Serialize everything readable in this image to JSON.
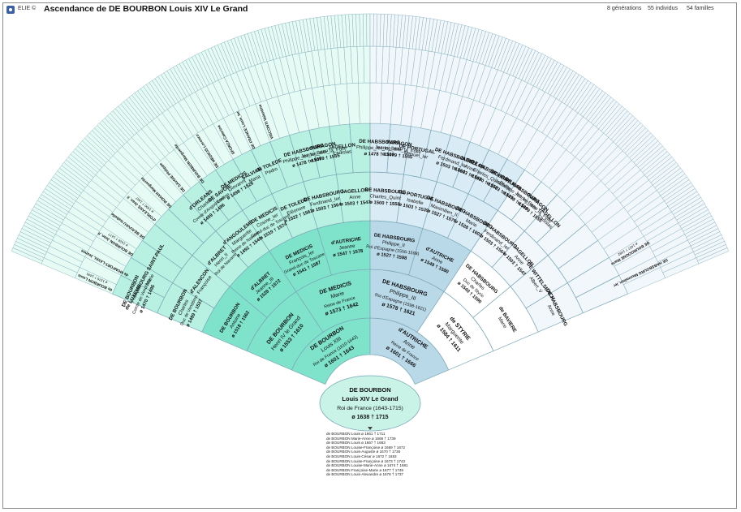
{
  "app": {
    "label": "ELIE ©"
  },
  "title": "Ascendance de DE BOURBON Louis XIV Le Grand",
  "stats": {
    "generations": "8 générations",
    "individuals": "55 individus",
    "families": "54 familles"
  },
  "colors": {
    "paternal_deep": "#7fe3cc",
    "paternal_mid": "#b8f1e2",
    "paternal_light": "#e6fbf4",
    "maternal_deep": "#b9d9e9",
    "maternal_mid": "#d9ebf4",
    "maternal_light": "#f1f7fb",
    "styrie": "#ffffff",
    "root": "#c8f3e6",
    "line": "#7aa7b6"
  },
  "root": {
    "surname": "DE BOURBON",
    "given": "Louis XIV Le Grand",
    "title": "Roi de France (1643-1715)",
    "dates": "ø 1638 † 1715"
  },
  "gen1": [
    {
      "name": "DE BOURBON",
      "given": "Louis XIII",
      "title": "Roi de France (1610-1643)",
      "dates": "ø 1601 † 1643",
      "side": "p"
    },
    {
      "name": "d'AUTRICHE",
      "given": "Anne",
      "title": "Reine de France",
      "dates": "ø 1601 † 1666",
      "side": "m"
    }
  ],
  "gen2": [
    {
      "name": "DE BOURBON",
      "given": "Henri IV le Grand",
      "dates": "ø 1553 † 1610",
      "side": "p"
    },
    {
      "name": "DE MEDICIS",
      "given": "Marie",
      "title": "Reine de France",
      "dates": "ø 1573 † 1642",
      "side": "p"
    },
    {
      "name": "DE HABSBOURG",
      "given": "Philippe_III",
      "title": "Roi d'Espagne (1598-1621)",
      "dates": "ø 1578 † 1621",
      "side": "m"
    },
    {
      "name": "de STYRIE",
      "given": "Marguerite",
      "dates": "ø 1584 † 1611",
      "side": "s"
    }
  ],
  "gen3": [
    {
      "name": "DE BOURBON",
      "given": "Antoine",
      "dates": "ø 1518 † 1562",
      "side": "p"
    },
    {
      "name": "d'ALBRET",
      "given": "Jeanne_III",
      "dates": "ø 1528 † 1572",
      "side": "p"
    },
    {
      "name": "DE MEDICIS",
      "given": "François_Ier",
      "title": "Grand-duc de Toscane",
      "dates": "ø 1541 † 1587",
      "side": "p"
    },
    {
      "name": "d'AUTRICHE",
      "given": "Jeanne",
      "dates": "ø 1547 † 1578",
      "side": "p"
    },
    {
      "name": "DE HABSBOURG",
      "given": "Philippe_II",
      "title": "Roi d'Espagne (1556-1598)",
      "dates": "ø 1527 † 1598",
      "side": "m"
    },
    {
      "name": "d'AUTRICHE",
      "given": "Anne",
      "dates": "ø 1549 † 1580",
      "side": "m"
    },
    {
      "name": "DE HABSBOURG",
      "given": "Charles",
      "title": "Duc de Styrie",
      "dates": "ø 1540 † 1590",
      "side": "s"
    },
    {
      "name": "de BAVIERE",
      "given": "Marie",
      "dates": "",
      "side": "s"
    }
  ],
  "gen4": [
    {
      "name": "DE BOURBON",
      "given": "Charles",
      "title": "Duc de Vendôme",
      "dates": "ø 1489 † 1537",
      "side": "p"
    },
    {
      "name": "d'ALENCON",
      "given": "Françoise",
      "dates": "",
      "side": "p"
    },
    {
      "name": "d'ALBRET",
      "given": "Henri_II",
      "title": "Roi de Navarre",
      "dates": "",
      "side": "p"
    },
    {
      "name": "d'ANGOULEME",
      "given": "Marguerite",
      "title": "Reine de Navarre",
      "dates": "ø 1492 † 1549",
      "side": "p"
    },
    {
      "name": "DE MEDICIS",
      "given": "Cosme_Ier",
      "title": "Grand-duc de Toscane",
      "dates": "ø 1519 † 1574",
      "side": "p"
    },
    {
      "name": "DE TOLEDE",
      "given": "Eléonore",
      "dates": "ø 1522 † 1562",
      "side": "p"
    },
    {
      "name": "DE HABSBOURG",
      "given": "Ferdinand_Ier",
      "dates": "ø 1503 † 1564",
      "side": "p"
    },
    {
      "name": "JAGELLON",
      "given": "Anne",
      "dates": "ø 1503 † 1547",
      "side": "p"
    },
    {
      "name": "DE HABSBOURG",
      "given": "Charles_Quint",
      "dates": "ø 1500 † 1558",
      "side": "m"
    },
    {
      "name": "DE PORTUGAL",
      "given": "Isabelle",
      "dates": "ø 1503 † 1539",
      "side": "m"
    },
    {
      "name": "DE HABSBOURG",
      "given": "Maximilien_II",
      "dates": "ø 1527 † 1576",
      "side": "m"
    },
    {
      "name": "DE HABSBOURG",
      "given": "Marie",
      "dates": "ø 1528 † 1603",
      "side": "m"
    },
    {
      "name": "DE HABSBOURG",
      "given": "Ferdinand_Ier",
      "dates": "ø 1503 † 1564",
      "side": "s"
    },
    {
      "name": "JAGELLON",
      "given": "Anne",
      "dates": "ø 1503 † 1547",
      "side": "s"
    },
    {
      "name": "DE WITTELSBACH",
      "given": "Albert_V",
      "dates": "",
      "side": "s"
    },
    {
      "name": "DE HABSBOURG",
      "given": "Anne",
      "dates": "",
      "side": "s"
    }
  ],
  "gen5": [
    {
      "name": "DE BOURBON",
      "given": "François",
      "title": "Comte de Vendôme",
      "dates": "ø 1470 † 1495",
      "side": "p"
    },
    {
      "name": "de LUXEMBOURG SAINT-PAUL",
      "given": "Marie",
      "dates": "",
      "side": "p"
    },
    {
      "name": "",
      "given": "",
      "dates": "",
      "side": "p"
    },
    {
      "name": "",
      "given": "",
      "dates": "",
      "side": "p"
    },
    {
      "name": "",
      "given": "",
      "dates": "",
      "side": "p"
    },
    {
      "name": "",
      "given": "",
      "dates": "",
      "side": "p"
    },
    {
      "name": "d'ORLEANS",
      "given": "Charles",
      "title": "Comte d'Angoulême",
      "dates": "ø 1459 † 1496",
      "side": "p"
    },
    {
      "name": "DE SAVOIE",
      "given": "Louise",
      "dates": "",
      "side": "p"
    },
    {
      "name": "DE MEDICIS",
      "given": "Giovanni",
      "dates": "ø 1498 † 1526",
      "side": "p"
    },
    {
      "name": "SALVIATI",
      "given": "Maria",
      "dates": "",
      "side": "p"
    },
    {
      "name": "de TOLEDE",
      "given": "Pedro",
      "dates": "",
      "side": "p"
    },
    {
      "name": "",
      "given": "",
      "dates": "",
      "side": "p"
    },
    {
      "name": "DE HABSBOURG",
      "given": "Philippe_Ier_le_Beau",
      "dates": "ø 1478 † 1506",
      "side": "p"
    },
    {
      "name": "d'ARAGON",
      "given": "Jeanne_dite_la_Folle",
      "dates": "ø 1479 † 1555",
      "side": "p"
    },
    {
      "name": "JAGELLON",
      "given": "Ladislas",
      "dates": "",
      "side": "p"
    },
    {
      "name": "",
      "given": "",
      "dates": "",
      "side": "p"
    },
    {
      "name": "DE HABSBOURG",
      "given": "Philippe_Ier_le_Beau",
      "dates": "ø 1478 † 1506",
      "side": "m"
    },
    {
      "name": "d'ARAGON",
      "given": "Jeanne_dite_la_Folle",
      "dates": "ø 1479 † 1555",
      "side": "m"
    },
    {
      "name": "DE PORTUGAL",
      "given": "Manuel_Ier",
      "dates": "",
      "side": "m"
    },
    {
      "name": "",
      "given": "",
      "dates": "",
      "side": "m"
    },
    {
      "name": "DE HABSBOURG",
      "given": "Ferdinand_Ier",
      "dates": "ø 1503 † 1564",
      "side": "m"
    },
    {
      "name": "JAGELLON",
      "given": "Anne",
      "dates": "ø 1503 † 1547",
      "side": "m"
    },
    {
      "name": "DE HABSBOURG",
      "given": "Charles_Quint",
      "dates": "ø 1500 † 1558",
      "side": "m"
    },
    {
      "name": "DE PORTUGAL",
      "given": "Isabelle",
      "dates": "ø 1503 † 1539",
      "side": "m"
    },
    {
      "name": "DE HABSBOURG",
      "given": "Philippe_Ier_le_Beau",
      "dates": "ø 1478 † 1506",
      "side": "s"
    },
    {
      "name": "d'ARAGON",
      "given": "Jeanne_dite_la_Folle",
      "dates": "ø 1479 † 1555",
      "side": "s"
    },
    {
      "name": "JAGELLON",
      "given": "Ladislas",
      "dates": "",
      "side": "s"
    },
    {
      "name": "",
      "given": "",
      "dates": "",
      "side": "s"
    },
    {
      "name": "",
      "given": "",
      "dates": "",
      "side": "s"
    },
    {
      "name": "",
      "given": "",
      "dates": "",
      "side": "s"
    },
    {
      "name": "",
      "given": "",
      "dates": "",
      "side": "s"
    },
    {
      "name": "",
      "given": "",
      "dates": "",
      "side": "s"
    }
  ],
  "outer_left": [
    {
      "name": "de BOURBON Louis",
      "dates": "ø 1376 † 1446"
    },
    {
      "name": "de MONFORT-LAVAL Jeanne",
      "dates": ""
    },
    {
      "name": "DE BOURBON Jean_II",
      "dates": "ø 1428 † 1477"
    },
    {
      "name": "DE BEAUVAU Isabelle",
      "dates": ""
    },
    {
      "name": "d'ORLEANS Jean_II",
      "dates": "ø 1400 † 1467"
    },
    {
      "name": "DE ROHAN Marguerite",
      "dates": ""
    },
    {
      "name": "DE SAVOIE Philippe",
      "dates": ""
    },
    {
      "name": "DE BOURBON Marguerite",
      "dates": ""
    },
    {
      "name": "DE MEDICIS Lorenzo",
      "dates": ""
    },
    {
      "name": "SFORZA Caterina",
      "dates": ""
    },
    {
      "name": "DE FRANCE Louis_Ier",
      "dates": ""
    },
    {
      "name": "VISCONTI Valentine",
      "dates": ""
    },
    {
      "name": "DE BOURGOGNE Marie",
      "dates": "ø 1457 † 1482"
    },
    {
      "name": "DE HABSBOURG Maximilien_Ier",
      "dates": ""
    }
  ],
  "children_list": [
    "de BOURBON Louis ø 1661 † 1711",
    "de BOURBON Marie-Anne ø 1666 † 1739",
    "de BOURBON Louis ø 1667 † 1683",
    "de BOURBON Louise-Françoise ø 1669 † 1672",
    "de BOURBON Louis-Auguste ø 1670 † 1736",
    "de BOURBON Louis-César ø 1672 † 1683",
    "de BOURBON Louise-Françoise ø 1673 † 1743",
    "de BOURBON Louise-Marie-Anne ø 1674 † 1681",
    "de BOURBON Françoise-Marie ø 1677 † 1749",
    "de BOURBON Louis-Alexandre ø 1678 † 1737"
  ]
}
